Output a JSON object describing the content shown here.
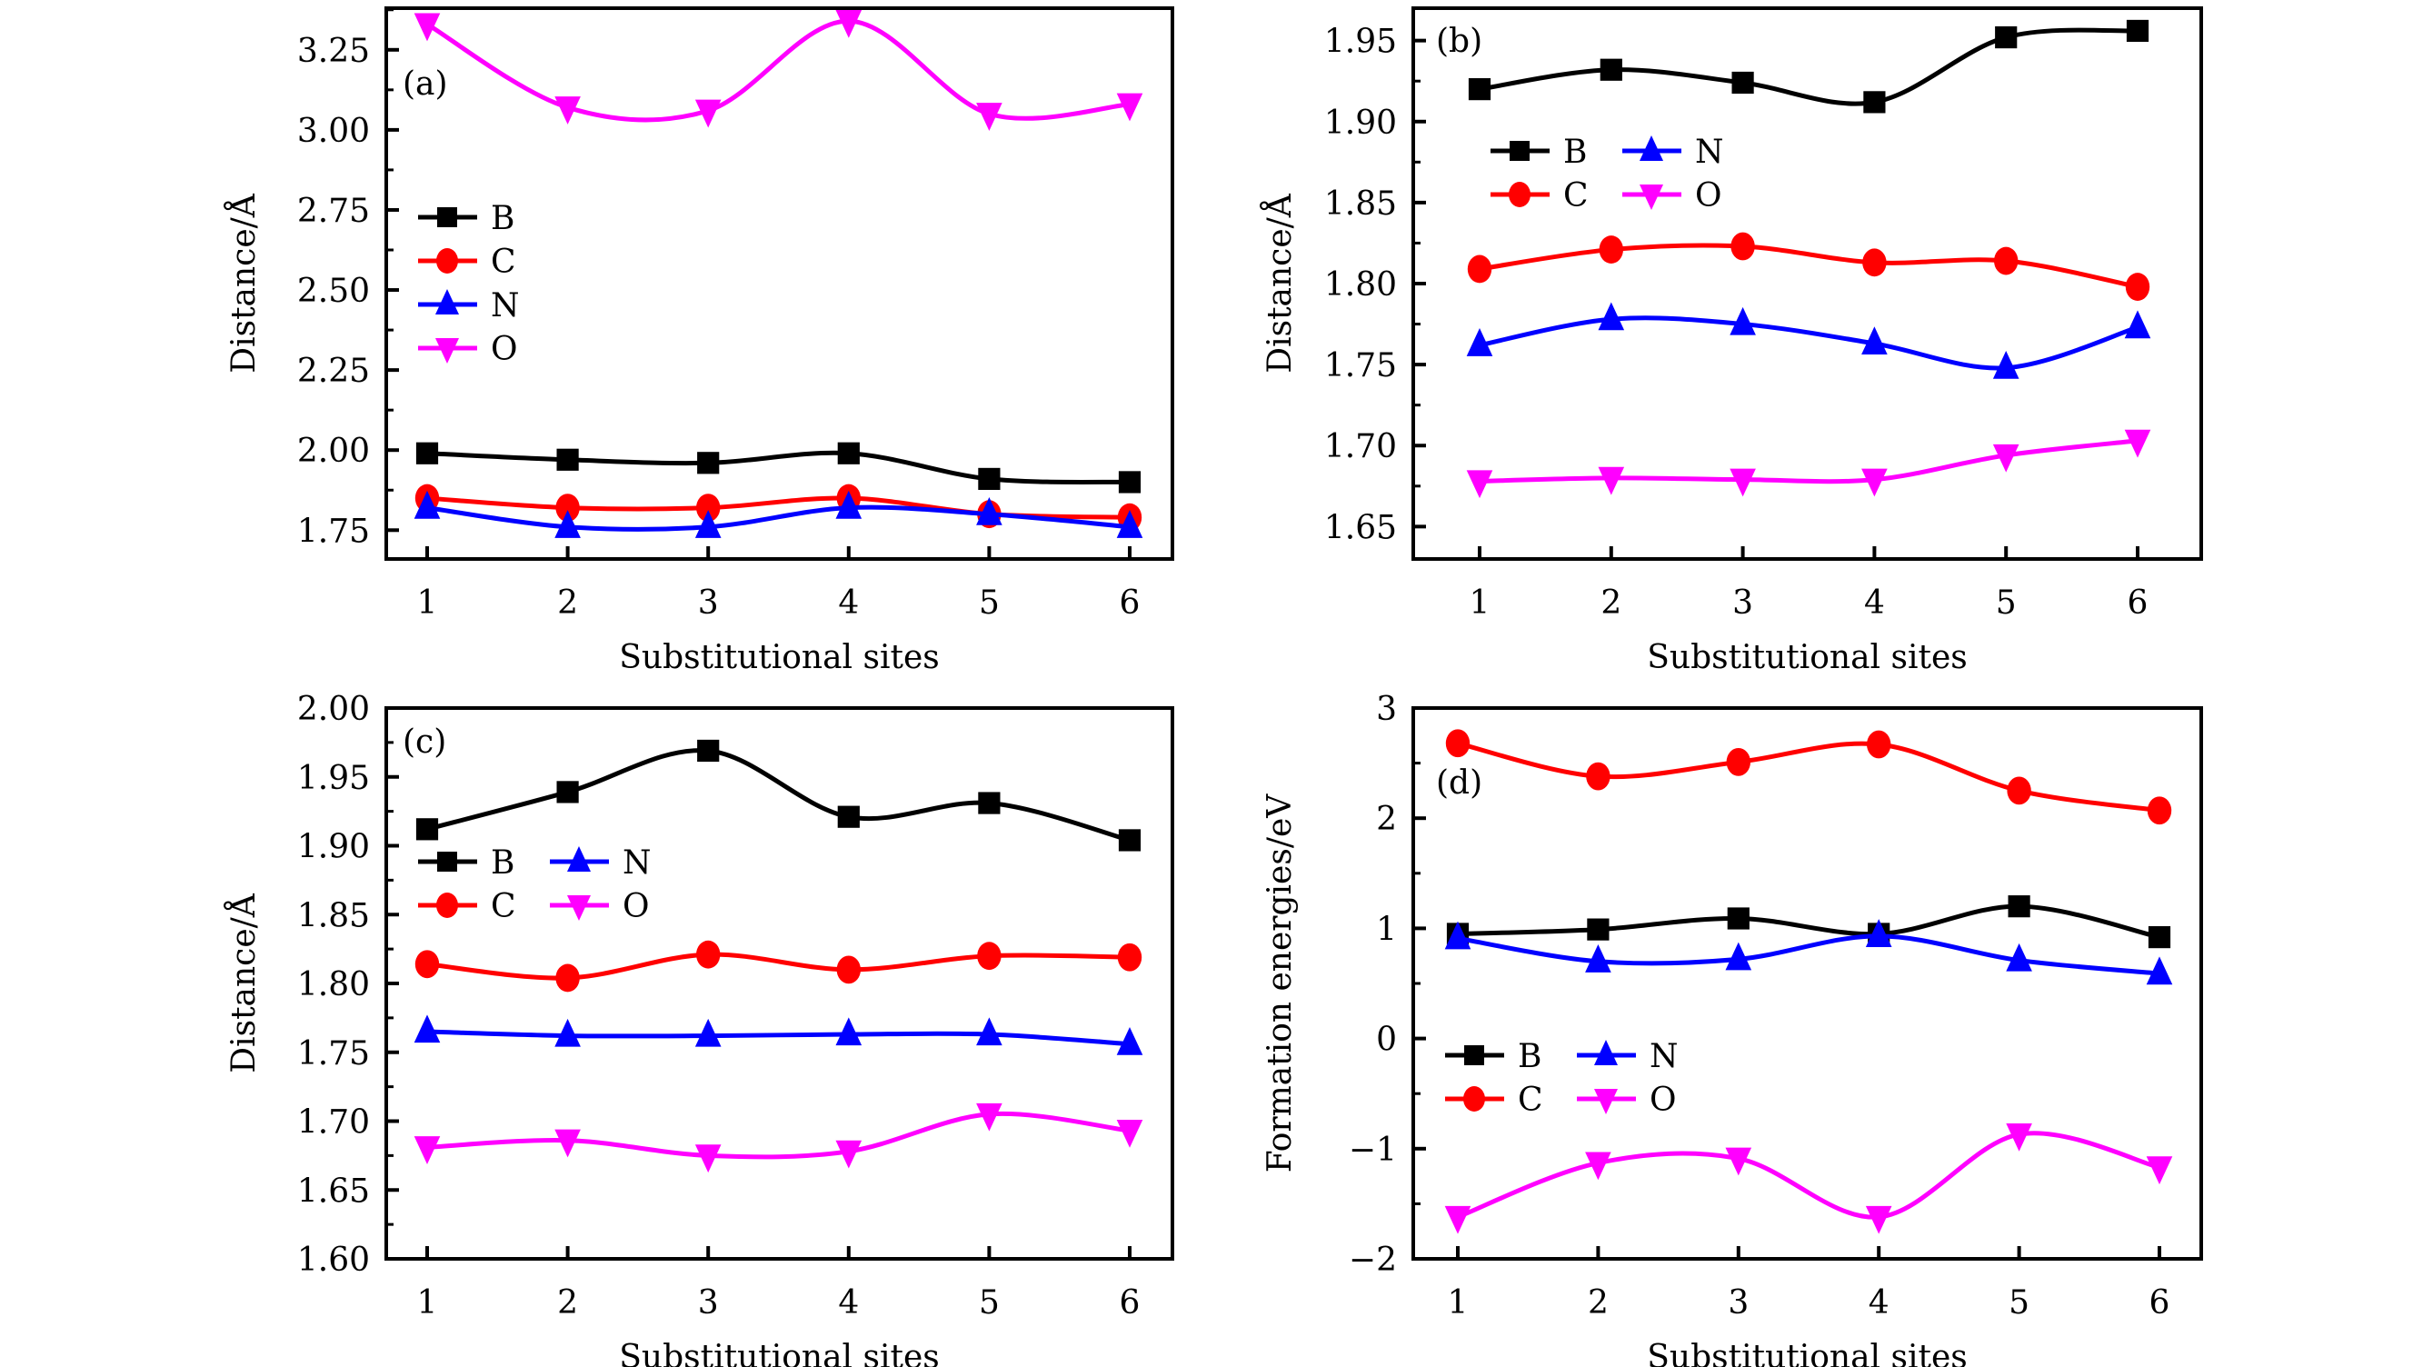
{
  "figure": {
    "series_styles": {
      "B": {
        "color": "#000000",
        "marker": "square"
      },
      "C": {
        "color": "#ff0000",
        "marker": "circle"
      },
      "N": {
        "color": "#0000ff",
        "marker": "triangle-up"
      },
      "O": {
        "color": "#ff00ff",
        "marker": "triangle-down"
      }
    }
  },
  "chart_data": [
    {
      "type": "line",
      "panel": "(a)",
      "title": "",
      "xlabel": "Substitutional sites",
      "ylabel": "Distance/Å",
      "x": [
        1,
        2,
        3,
        4,
        5,
        6
      ],
      "xticks": [
        "1",
        "2",
        "3",
        "4",
        "5",
        "6"
      ],
      "ylim": [
        1.66,
        3.38
      ],
      "yticks": [
        1.75,
        2.0,
        2.25,
        2.5,
        2.75,
        3.0,
        3.25
      ],
      "ytick_labels": [
        "1.75",
        "2.00",
        "2.25",
        "2.50",
        "2.75",
        "3.00",
        "3.25"
      ],
      "yminor": [
        1.875,
        2.125,
        2.375,
        2.625,
        2.875,
        3.125,
        3.375
      ],
      "legend": {
        "placement": "middle-left",
        "columns": 1,
        "entries": [
          "B",
          "C",
          "N",
          "O"
        ]
      },
      "series": [
        {
          "name": "B",
          "values": [
            1.99,
            1.97,
            1.96,
            1.99,
            1.91,
            1.9
          ]
        },
        {
          "name": "C",
          "values": [
            1.85,
            1.82,
            1.82,
            1.85,
            1.8,
            1.79
          ]
        },
        {
          "name": "N",
          "values": [
            1.82,
            1.76,
            1.76,
            1.82,
            1.8,
            1.76
          ]
        },
        {
          "name": "O",
          "values": [
            3.33,
            3.07,
            3.06,
            3.34,
            3.05,
            3.08
          ]
        }
      ]
    },
    {
      "type": "line",
      "panel": "(b)",
      "title": "",
      "xlabel": "Substitutional sites",
      "ylabel": "Distance/Å",
      "x": [
        1,
        2,
        3,
        4,
        5,
        6
      ],
      "xticks": [
        "1",
        "2",
        "3",
        "4",
        "5",
        "6"
      ],
      "ylim": [
        1.63,
        1.97
      ],
      "yticks": [
        1.65,
        1.7,
        1.75,
        1.8,
        1.85,
        1.9,
        1.95
      ],
      "ytick_labels": [
        "1.65",
        "1.70",
        "1.75",
        "1.80",
        "1.85",
        "1.90",
        "1.95"
      ],
      "yminor": [
        1.675,
        1.725,
        1.775,
        1.825,
        1.875,
        1.925
      ],
      "legend": {
        "placement": "upper-left",
        "columns": 2,
        "entries": [
          "B",
          "N",
          "C",
          "O"
        ]
      },
      "series": [
        {
          "name": "B",
          "values": [
            1.92,
            1.932,
            1.924,
            1.912,
            1.952,
            1.956
          ]
        },
        {
          "name": "C",
          "values": [
            1.809,
            1.821,
            1.823,
            1.813,
            1.814,
            1.798
          ]
        },
        {
          "name": "N",
          "values": [
            1.762,
            1.778,
            1.775,
            1.763,
            1.748,
            1.773
          ]
        },
        {
          "name": "O",
          "values": [
            1.678,
            1.68,
            1.679,
            1.679,
            1.694,
            1.703
          ]
        }
      ]
    },
    {
      "type": "line",
      "panel": "(c)",
      "title": "",
      "xlabel": "Substitutional sites",
      "ylabel": "Distance/Å",
      "x": [
        1,
        2,
        3,
        4,
        5,
        6
      ],
      "xticks": [
        "1",
        "2",
        "3",
        "4",
        "5",
        "6"
      ],
      "ylim": [
        1.6,
        2.0
      ],
      "yticks": [
        1.6,
        1.65,
        1.7,
        1.75,
        1.8,
        1.85,
        1.9,
        1.95,
        2.0
      ],
      "ytick_labels": [
        "1.60",
        "1.65",
        "1.70",
        "1.75",
        "1.80",
        "1.85",
        "1.90",
        "1.95",
        "2.00"
      ],
      "yminor": [
        1.625,
        1.675,
        1.725,
        1.775,
        1.825,
        1.875,
        1.925,
        1.975
      ],
      "legend": {
        "placement": "upper-left",
        "columns": 2,
        "entries": [
          "B",
          "N",
          "C",
          "O"
        ]
      },
      "series": [
        {
          "name": "B",
          "values": [
            1.912,
            1.939,
            1.969,
            1.921,
            1.931,
            1.904
          ]
        },
        {
          "name": "C",
          "values": [
            1.814,
            1.804,
            1.821,
            1.81,
            1.82,
            1.819
          ]
        },
        {
          "name": "N",
          "values": [
            1.765,
            1.762,
            1.762,
            1.763,
            1.763,
            1.756
          ]
        },
        {
          "name": "O",
          "values": [
            1.681,
            1.686,
            1.675,
            1.678,
            1.705,
            1.693
          ]
        }
      ]
    },
    {
      "type": "line",
      "panel": "(d)",
      "title": "",
      "xlabel": "Substitutional sites",
      "ylabel": "Formation energies/eV",
      "x": [
        1,
        2,
        3,
        4,
        5,
        6
      ],
      "xticks": [
        "1",
        "2",
        "3",
        "4",
        "5",
        "6"
      ],
      "ylim": [
        -2,
        3
      ],
      "yticks": [
        -2,
        -1,
        0,
        1,
        2,
        3
      ],
      "ytick_labels": [
        "−2",
        "−1",
        "0",
        "1",
        "2",
        "3"
      ],
      "yminor": [
        -1.5,
        -0.5,
        0.5,
        1.5,
        2.5
      ],
      "legend": {
        "placement": "middle-left",
        "columns": 2,
        "entries": [
          "B",
          "N",
          "C",
          "O"
        ]
      },
      "series": [
        {
          "name": "B",
          "values": [
            0.95,
            0.99,
            1.09,
            0.95,
            1.2,
            0.92
          ]
        },
        {
          "name": "C",
          "values": [
            2.68,
            2.38,
            2.51,
            2.67,
            2.25,
            2.07
          ]
        },
        {
          "name": "N",
          "values": [
            0.91,
            0.7,
            0.72,
            0.93,
            0.71,
            0.59
          ]
        },
        {
          "name": "O",
          "values": [
            -1.62,
            -1.13,
            -1.09,
            -1.62,
            -0.87,
            -1.17
          ]
        }
      ]
    }
  ]
}
